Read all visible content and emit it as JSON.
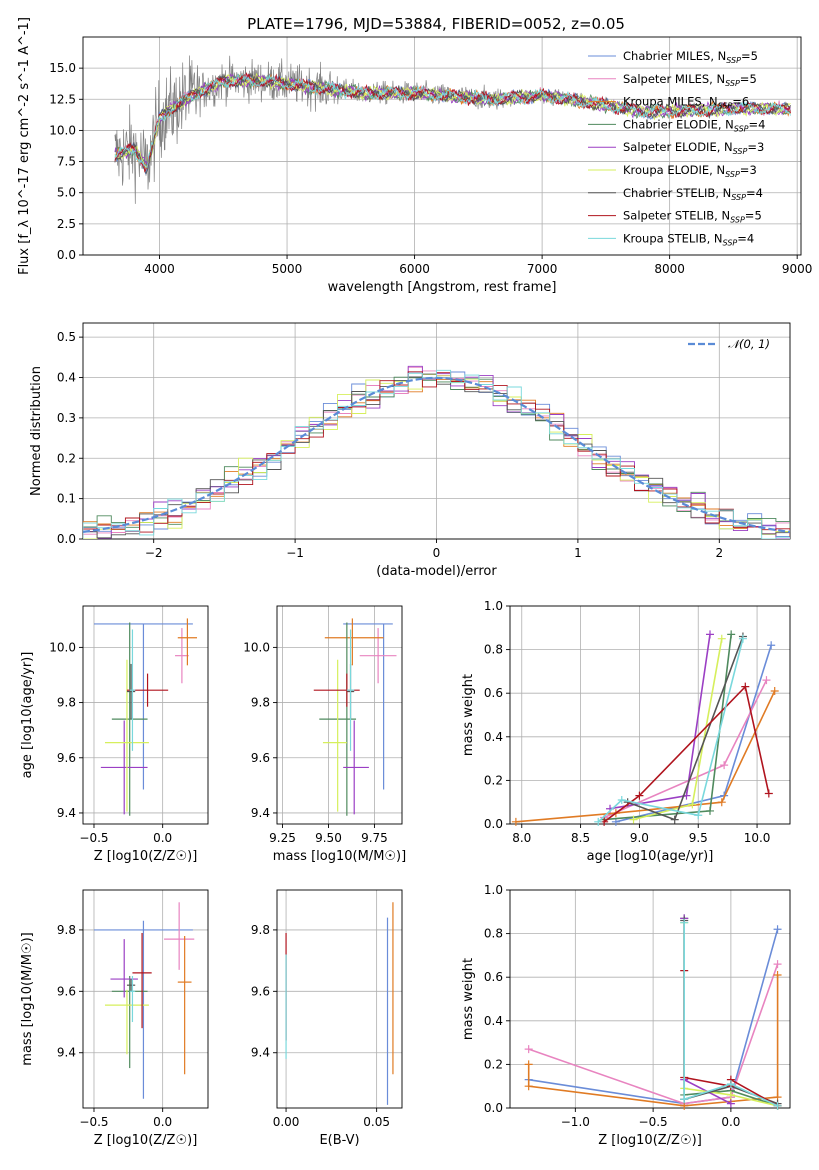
{
  "title": "PLATE=1796, MJD=53884, FIBERID=0052, z=0.05",
  "series_styles": [
    {
      "name": "Chabrier MILES",
      "nssp": "5",
      "color": "#6a8cd8"
    },
    {
      "name": "Salpeter MILES",
      "nssp": "5",
      "color": "#e884c0"
    },
    {
      "name": "Kroupa MILES",
      "nssp": "6",
      "color": "#e07b24"
    },
    {
      "name": "Chabrier ELODIE",
      "nssp": "4",
      "color": "#4f8a5e"
    },
    {
      "name": "Salpeter ELODIE",
      "nssp": "3",
      "color": "#9b3fc4"
    },
    {
      "name": "Kroupa ELODIE",
      "nssp": "3",
      "color": "#d6ef5c"
    },
    {
      "name": "Chabrier STELIB",
      "nssp": "4",
      "color": "#555555"
    },
    {
      "name": "Salpeter STELIB",
      "nssp": "5",
      "color": "#b0141e"
    },
    {
      "name": "Kroupa STELIB",
      "nssp": "4",
      "color": "#79d8dc"
    }
  ],
  "data_color": "#808080",
  "chart_data": [
    {
      "id": "spectrum",
      "type": "line",
      "xlabel": "wavelength [Angstrom, rest frame]",
      "ylabel": "Flux [f_λ 10^-17 erg cm^-2 s^-1 A^-1]",
      "xlim": [
        3400,
        9030
      ],
      "ylim": [
        0,
        17.5
      ],
      "xticks": [
        4000,
        5000,
        6000,
        7000,
        8000,
        9000
      ],
      "yticks": [
        0.0,
        2.5,
        5.0,
        7.5,
        10.0,
        12.5,
        15.0
      ],
      "ytick_labels": [
        "0.0",
        "2.5",
        "5.0",
        "7.5",
        "10.0",
        "12.5",
        "15.0"
      ],
      "data_range": [
        3650,
        7400
      ],
      "model_range": [
        3650,
        8950
      ],
      "continuum_knots": [
        [
          3650,
          8
        ],
        [
          3800,
          8.5
        ],
        [
          3900,
          7
        ],
        [
          4000,
          11
        ],
        [
          4200,
          12.5
        ],
        [
          4500,
          14
        ],
        [
          4800,
          14
        ],
        [
          5200,
          13.5
        ],
        [
          5600,
          13
        ],
        [
          6000,
          13
        ],
        [
          6600,
          12.5
        ],
        [
          7000,
          12.8
        ],
        [
          7400,
          12.2
        ],
        [
          7800,
          11.5
        ],
        [
          8200,
          11.6
        ],
        [
          8600,
          11.8
        ],
        [
          8950,
          11.7
        ]
      ],
      "grid": true,
      "legend": "right"
    },
    {
      "id": "residuals",
      "type": "step-histogram",
      "xlabel": "(data-model)/error",
      "ylabel": "Normed distribution",
      "xlim": [
        -2.5,
        2.5
      ],
      "ylim": [
        0,
        0.535
      ],
      "xticks": [
        -2,
        -1,
        0,
        1,
        2
      ],
      "yticks": [
        0.0,
        0.1,
        0.2,
        0.3,
        0.4,
        0.5
      ],
      "xtick_labels": [
        "−2",
        "−1",
        "0",
        "1",
        "2"
      ],
      "ytick_labels": [
        "0.0",
        "0.1",
        "0.2",
        "0.3",
        "0.4",
        "0.5"
      ],
      "reference_label": "𝒩(0, 1)",
      "reference_color": "#5a8bd6",
      "bin_start": -2.5,
      "bin_width": 0.1,
      "nbins": 50,
      "grid": true,
      "legend": "top-right"
    },
    {
      "id": "age_vs_Z",
      "type": "errorbar",
      "xlabel": "Z [log10(Z/Z☉)]",
      "ylabel": "age  [log10(age/yr)]",
      "xlim": [
        -0.58,
        0.33
      ],
      "ylim": [
        9.36,
        10.15
      ],
      "xticks": [
        -0.5,
        0.0
      ],
      "yticks": [
        9.4,
        9.6,
        9.8,
        10.0
      ],
      "xtick_labels": [
        "−0.5",
        "0.0"
      ],
      "ytick_labels": [
        "9.4",
        "9.6",
        "9.8",
        "10.0"
      ],
      "points": [
        {
          "x": -0.14,
          "xerr": [
            0.36,
            0.36
          ],
          "y": 10.085,
          "yerr": [
            0.6,
            0.0
          ],
          "c": 0
        },
        {
          "x": 0.14,
          "xerr": [
            0.05,
            0.05
          ],
          "y": 9.97,
          "yerr": [
            0.1,
            0.1
          ],
          "c": 1
        },
        {
          "x": 0.18,
          "xerr": [
            0.07,
            0.07
          ],
          "y": 10.035,
          "yerr": [
            0.1,
            0.07
          ],
          "c": 2
        },
        {
          "x": -0.24,
          "xerr": [
            0.13,
            0.13
          ],
          "y": 9.74,
          "yerr": [
            0.35,
            0.35
          ],
          "c": 3
        },
        {
          "x": -0.28,
          "xerr": [
            0.17,
            0.17
          ],
          "y": 9.565,
          "yerr": [
            0.17,
            0.17
          ],
          "c": 4
        },
        {
          "x": -0.26,
          "xerr": [
            0.16,
            0.16
          ],
          "y": 9.655,
          "yerr": [
            0.25,
            0.3
          ],
          "c": 5
        },
        {
          "x": -0.23,
          "xerr": [
            0.03,
            0.03
          ],
          "y": 9.84,
          "yerr": [
            0.1,
            0.1
          ],
          "c": 6
        },
        {
          "x": -0.11,
          "xerr": [
            0.15,
            0.15
          ],
          "y": 9.845,
          "yerr": [
            0.06,
            0.06
          ],
          "c": 7
        },
        {
          "x": -0.22,
          "xerr": [
            0.02,
            0.02
          ],
          "y": 9.845,
          "yerr": [
            0.22,
            0.22
          ],
          "c": 8
        }
      ]
    },
    {
      "id": "age_vs_mass",
      "type": "errorbar",
      "xlabel": "mass [log10(M/M☉)]",
      "ylabel": "",
      "xlim": [
        9.22,
        9.9
      ],
      "ylim": [
        9.36,
        10.15
      ],
      "xticks": [
        9.25,
        9.5,
        9.75
      ],
      "yticks": [
        9.4,
        9.6,
        9.8,
        10.0
      ],
      "xtick_labels": [
        "9.25",
        "9.50",
        "9.75"
      ],
      "ytick_labels": [
        "9.4",
        "9.6",
        "9.8",
        "10.0"
      ],
      "points": [
        {
          "x": 9.8,
          "xerr": [
            0.22,
            0.05
          ],
          "y": 10.085,
          "yerr": [
            0.6,
            0.0
          ],
          "c": 0
        },
        {
          "x": 9.77,
          "xerr": [
            0.1,
            0.1
          ],
          "y": 9.97,
          "yerr": [
            0.1,
            0.1
          ],
          "c": 1
        },
        {
          "x": 9.63,
          "xerr": [
            0.15,
            0.17
          ],
          "y": 10.035,
          "yerr": [
            0.1,
            0.07
          ],
          "c": 2
        },
        {
          "x": 9.6,
          "xerr": [
            0.15,
            0.05
          ],
          "y": 9.74,
          "yerr": [
            0.35,
            0.35
          ],
          "c": 3
        },
        {
          "x": 9.64,
          "xerr": [
            0.06,
            0.08
          ],
          "y": 9.565,
          "yerr": [
            0.17,
            0.17
          ],
          "c": 4
        },
        {
          "x": 9.55,
          "xerr": [
            0.08,
            0.05
          ],
          "y": 9.655,
          "yerr": [
            0.25,
            0.3
          ],
          "c": 5
        },
        {
          "x": 9.62,
          "xerr": [
            0.02,
            0.02
          ],
          "y": 9.84,
          "yerr": [
            0.1,
            0.1
          ],
          "c": 6
        },
        {
          "x": 9.6,
          "xerr": [
            0.18,
            0.07
          ],
          "y": 9.845,
          "yerr": [
            0.06,
            0.06
          ],
          "c": 7
        },
        {
          "x": 9.62,
          "xerr": [
            0.02,
            0.02
          ],
          "y": 9.845,
          "yerr": [
            0.22,
            0.22
          ],
          "c": 8
        }
      ]
    },
    {
      "id": "weight_vs_age",
      "type": "line-markers",
      "xlabel": "age  [log10(age/yr)]",
      "ylabel": "mass weight",
      "xlim": [
        7.9,
        10.28
      ],
      "ylim": [
        0,
        1.0
      ],
      "xticks": [
        8.0,
        8.5,
        9.0,
        9.5,
        10.0
      ],
      "yticks": [
        0.0,
        0.2,
        0.4,
        0.6,
        0.8,
        1.0
      ],
      "xtick_labels": [
        "8.0",
        "8.5",
        "9.0",
        "9.5",
        "10.0"
      ],
      "ytick_labels": [
        "0.0",
        "0.2",
        "0.4",
        "0.6",
        "0.8",
        "1.0"
      ],
      "series": [
        {
          "c": 0,
          "x": [
            8.8,
            9.72,
            10.12
          ],
          "y": [
            0.01,
            0.13,
            0.82
          ]
        },
        {
          "c": 1,
          "x": [
            8.7,
            9.72,
            10.08
          ],
          "y": [
            0.03,
            0.27,
            0.66
          ]
        },
        {
          "c": 2,
          "x": [
            7.95,
            8.8,
            9.7,
            10.15
          ],
          "y": [
            0.01,
            0.05,
            0.1,
            0.61
          ]
        },
        {
          "c": 3,
          "x": [
            8.7,
            9.6,
            9.78
          ],
          "y": [
            0.02,
            0.06,
            0.87
          ]
        },
        {
          "c": 4,
          "x": [
            8.75,
            9.4,
            9.6
          ],
          "y": [
            0.07,
            0.13,
            0.87
          ]
        },
        {
          "c": 5,
          "x": [
            8.95,
            9.45,
            9.7
          ],
          "y": [
            0.02,
            0.09,
            0.85
          ]
        },
        {
          "c": 6,
          "x": [
            8.9,
            9.3,
            9.88
          ],
          "y": [
            0.1,
            0.02,
            0.86
          ]
        },
        {
          "c": 7,
          "x": [
            8.7,
            9.0,
            9.9,
            10.1
          ],
          "y": [
            0.01,
            0.13,
            0.63,
            0.14
          ]
        },
        {
          "c": 8,
          "x": [
            8.65,
            8.85,
            9.5,
            9.88
          ],
          "y": [
            0.01,
            0.11,
            0.04,
            0.85
          ]
        }
      ]
    },
    {
      "id": "mass_vs_Z",
      "type": "errorbar",
      "xlabel": "Z [log10(Z/Z☉)]",
      "ylabel": "mass [log10(M/M☉)]",
      "xlim": [
        -0.58,
        0.33
      ],
      "ylim": [
        9.22,
        9.93
      ],
      "xticks": [
        -0.5,
        0.0
      ],
      "yticks": [
        9.4,
        9.6,
        9.8
      ],
      "xtick_labels": [
        "−0.5",
        "0.0"
      ],
      "ytick_labels": [
        "9.4",
        "9.6",
        "9.8"
      ],
      "points": [
        {
          "x": -0.14,
          "xerr": [
            0.36,
            0.36
          ],
          "y": 9.8,
          "yerr": [
            0.55,
            0.03
          ],
          "c": 0
        },
        {
          "x": 0.12,
          "xerr": [
            0.11,
            0.11
          ],
          "y": 9.77,
          "yerr": [
            0.1,
            0.12
          ],
          "c": 1
        },
        {
          "x": 0.16,
          "xerr": [
            0.05,
            0.05
          ],
          "y": 9.63,
          "yerr": [
            0.3,
            0.15
          ],
          "c": 2
        },
        {
          "x": -0.24,
          "xerr": [
            0.13,
            0.13
          ],
          "y": 9.6,
          "yerr": [
            0.25,
            0.05
          ],
          "c": 3
        },
        {
          "x": -0.28,
          "xerr": [
            0.1,
            0.1
          ],
          "y": 9.64,
          "yerr": [
            0.06,
            0.13
          ],
          "c": 4
        },
        {
          "x": -0.26,
          "xerr": [
            0.16,
            0.16
          ],
          "y": 9.555,
          "yerr": [
            0.16,
            0.05
          ],
          "c": 5
        },
        {
          "x": -0.23,
          "xerr": [
            0.03,
            0.03
          ],
          "y": 9.62,
          "yerr": [
            0.02,
            0.02
          ],
          "c": 6
        },
        {
          "x": -0.15,
          "xerr": [
            0.07,
            0.07
          ],
          "y": 9.66,
          "yerr": [
            0.18,
            0.13
          ],
          "c": 7
        },
        {
          "x": -0.22,
          "xerr": [
            0.02,
            0.02
          ],
          "y": 9.6,
          "yerr": [
            0.1,
            0.05
          ],
          "c": 8
        }
      ]
    },
    {
      "id": "mass_vs_EBV",
      "type": "errorbar",
      "xlabel": "E(B-V)",
      "ylabel": "",
      "xlim": [
        -0.005,
        0.064
      ],
      "ylim": [
        9.22,
        9.93
      ],
      "xticks": [
        0.0,
        0.05
      ],
      "yticks": [
        9.4,
        9.6,
        9.8
      ],
      "xtick_labels": [
        "0.00",
        "0.05"
      ],
      "ytick_labels": [
        "9.4",
        "9.6",
        "9.8"
      ],
      "points": [
        {
          "x": 0.056,
          "xerr": [
            0,
            0
          ],
          "y": 9.54,
          "yerr": [
            0.31,
            0.3
          ],
          "c": 0
        },
        {
          "x": 0.059,
          "xerr": [
            0,
            0
          ],
          "y": 9.61,
          "yerr": [
            0.28,
            0.28
          ],
          "c": 2
        },
        {
          "x": 0.0,
          "xerr": [
            0,
            0
          ],
          "y": 9.62,
          "yerr": [
            0.18,
            0.17
          ],
          "c": 7
        },
        {
          "x": 0.0,
          "xerr": [
            0,
            0
          ],
          "y": 9.58,
          "yerr": [
            0.2,
            0.14
          ],
          "c": 8
        }
      ]
    },
    {
      "id": "weight_vs_Z",
      "type": "line-markers",
      "xlabel": "Z [log10(Z/Z☉)]",
      "ylabel": "mass weight",
      "xlim": [
        -1.42,
        0.38
      ],
      "ylim": [
        0,
        1.0
      ],
      "xticks": [
        -1.0,
        -0.5,
        0.0
      ],
      "yticks": [
        0.0,
        0.2,
        0.4,
        0.6,
        0.8,
        1.0
      ],
      "xtick_labels": [
        "−1.0",
        "−0.5",
        "0.0"
      ],
      "ytick_labels": [
        "0.0",
        "0.2",
        "0.4",
        "0.6",
        "0.8",
        "1.0"
      ],
      "series": [
        {
          "c": 0,
          "x": [
            -1.3,
            -0.3,
            0.0,
            0.3
          ],
          "y": [
            0.13,
            0.02,
            0.05,
            0.82
          ]
        },
        {
          "c": 1,
          "x": [
            -1.3,
            -0.3,
            0.0,
            0.3
          ],
          "y": [
            0.27,
            0.02,
            0.05,
            0.66
          ]
        },
        {
          "c": 2,
          "x": [
            -1.3,
            -1.3,
            -0.3,
            0.0,
            0.3,
            0.3
          ],
          "y": [
            0.2,
            0.1,
            0.01,
            0.03,
            0.05,
            0.61
          ]
        },
        {
          "c": 3,
          "x": [
            -0.3,
            -0.3,
            0.0,
            0.3
          ],
          "y": [
            0.87,
            0.06,
            0.08,
            0.01
          ]
        },
        {
          "c": 4,
          "x": [
            -0.3,
            -0.3,
            0.0
          ],
          "y": [
            0.87,
            0.13,
            0.02
          ]
        },
        {
          "c": 5,
          "x": [
            -0.3,
            -0.3,
            0.0,
            0.3
          ],
          "y": [
            0.85,
            0.09,
            0.06,
            0.01
          ]
        },
        {
          "c": 6,
          "x": [
            -0.3,
            -0.3,
            0.0,
            0.3
          ],
          "y": [
            0.86,
            0.04,
            0.1,
            0.02
          ]
        },
        {
          "c": 7,
          "x": [
            -0.3,
            -0.3,
            0.0,
            0.0,
            0.3
          ],
          "y": [
            0.63,
            0.14,
            0.1,
            0.13,
            0.01
          ]
        },
        {
          "c": 8,
          "x": [
            -0.3,
            -0.3,
            0.0,
            0.3
          ],
          "y": [
            0.85,
            0.04,
            0.11,
            0.01
          ]
        }
      ]
    }
  ]
}
